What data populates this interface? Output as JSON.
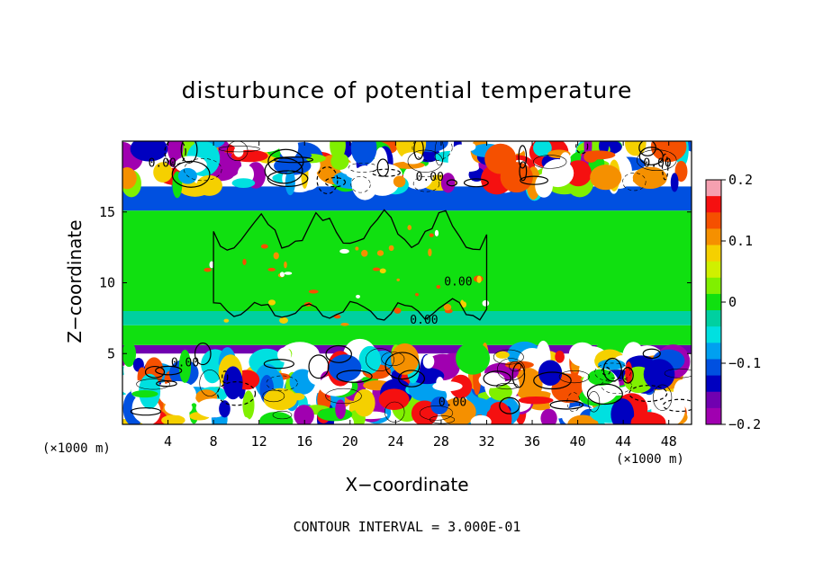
{
  "chart_data": {
    "type": "heatmap",
    "title": "disturbunce of potential temperature",
    "xlabel": "X−coordinate",
    "ylabel": "Z−coordinate",
    "x_unit": "(×1000 m)",
    "z_unit": "(×1000 m)",
    "xlim": [
      0,
      50
    ],
    "zlim": [
      0,
      20
    ],
    "x_ticks": [
      4,
      8,
      12,
      16,
      20,
      24,
      28,
      32,
      36,
      40,
      44,
      48
    ],
    "z_ticks": [
      5,
      10,
      15
    ],
    "contour_interval": "CONTOUR INTERVAL = 3.000E-01",
    "contour_labels": [
      {
        "x": 3.5,
        "z": 18.2,
        "text": "0.00"
      },
      {
        "x": 27,
        "z": 17.2,
        "text": "0.00"
      },
      {
        "x": 47,
        "z": 18.2,
        "text": "0.00"
      },
      {
        "x": 29.5,
        "z": 9.8,
        "text": "0.00"
      },
      {
        "x": 26.5,
        "z": 7.1,
        "text": "0.00"
      },
      {
        "x": 5.5,
        "z": 4.1,
        "text": "0.00"
      },
      {
        "x": 29,
        "z": 1.3,
        "text": "0.00"
      }
    ],
    "bands": [
      {
        "z0": 0,
        "z1": 5,
        "value": "turbulent"
      },
      {
        "z0": 5,
        "z1": 5.6,
        "value": -0.16
      },
      {
        "z0": 5.6,
        "z1": 7.0,
        "value": -0.01
      },
      {
        "z0": 7.0,
        "z1": 8.0,
        "value": -0.03
      },
      {
        "z0": 8.0,
        "z1": 15.1,
        "value": 0.0
      },
      {
        "z0": 15.1,
        "z1": 16.8,
        "value": -0.12
      },
      {
        "z0": 16.8,
        "z1": 20,
        "value": "turbulent"
      }
    ],
    "colorbar": {
      "ticks": [
        "0.2",
        "0.1",
        "0",
        "−0.1",
        "−0.2"
      ],
      "range": [
        -0.2,
        0.2
      ],
      "colors": [
        "#f5a0b0",
        "#f51010",
        "#f55000",
        "#f59000",
        "#f5d000",
        "#d0f000",
        "#80f000",
        "#10e010",
        "#00d0a0",
        "#00e0e0",
        "#00a0f0",
        "#0050e0",
        "#0000c0",
        "#7000b0",
        "#a000b0"
      ]
    }
  }
}
